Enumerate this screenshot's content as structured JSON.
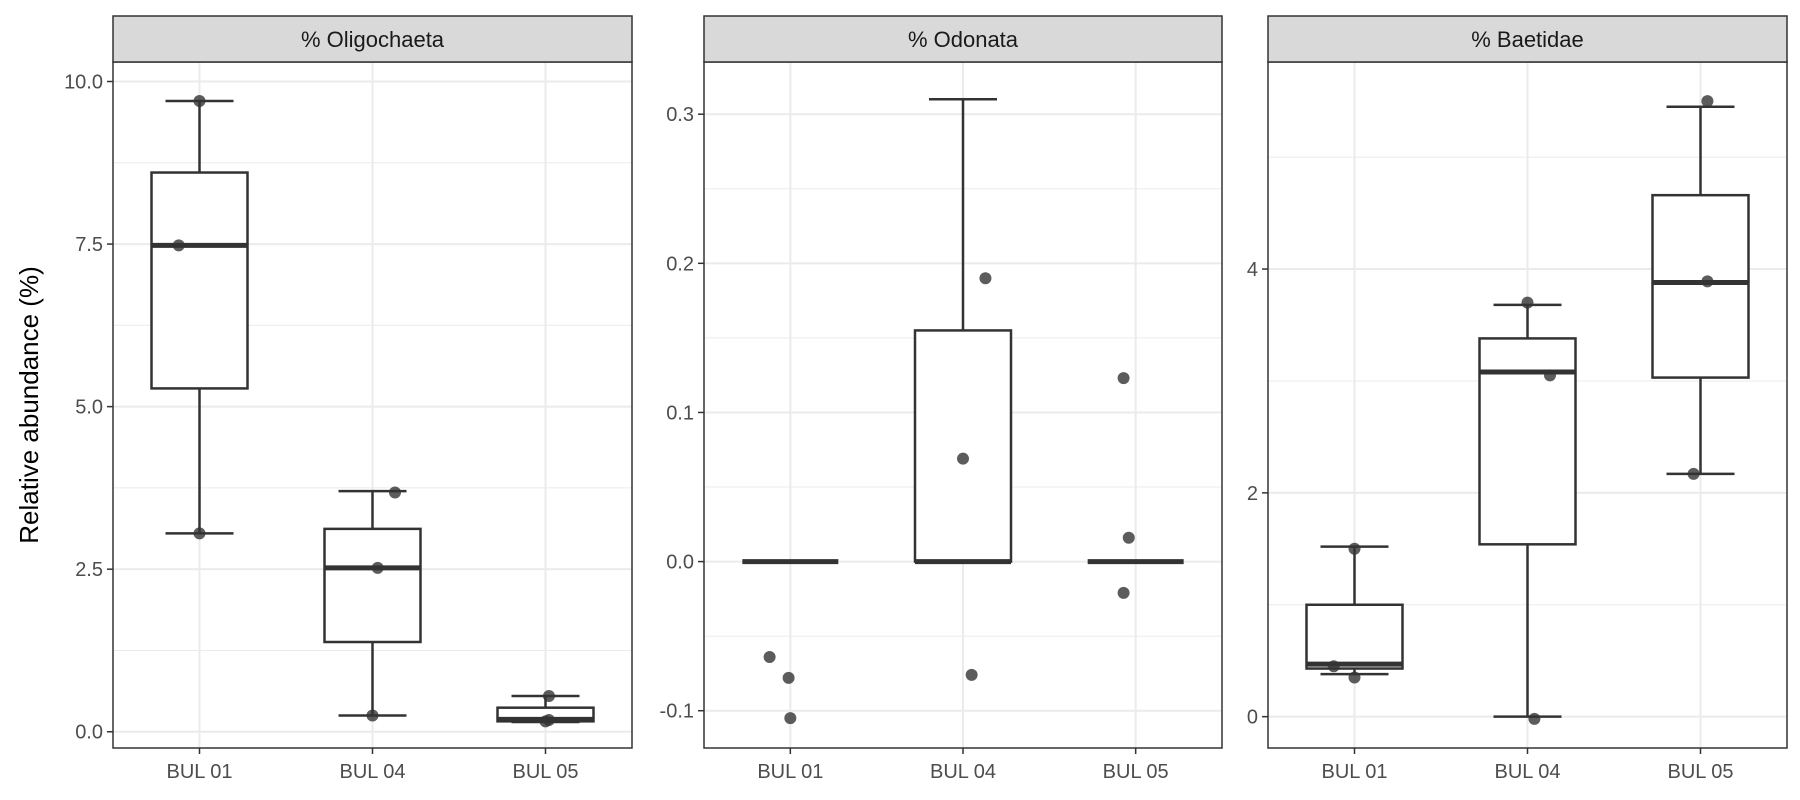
{
  "chart_data": {
    "type": "box",
    "ylabel": "Relative abundance (%)",
    "xlabel": "",
    "grid": true,
    "colors": {
      "strip_fill": "#d9d9d9",
      "box_line": "#333333",
      "point": "#333333",
      "grid": "#ebebeb"
    },
    "panels": [
      {
        "title": "% Oligochaeta",
        "ylim": [
          -0.25,
          10.3
        ],
        "yticks": [
          0.0,
          2.5,
          5.0,
          7.5,
          10.0
        ],
        "ytick_labels": [
          "0.0",
          "2.5",
          "5.0",
          "7.5",
          "10.0"
        ],
        "categories": [
          "BUL 01",
          "BUL 04",
          "BUL 05"
        ],
        "boxes": [
          {
            "lower_whisker": 3.05,
            "q1": 5.28,
            "median": 7.48,
            "q3": 8.6,
            "upper_whisker": 9.7
          },
          {
            "lower_whisker": 0.25,
            "q1": 1.38,
            "median": 2.52,
            "q3": 3.12,
            "upper_whisker": 3.7
          },
          {
            "lower_whisker": 0.15,
            "q1": 0.16,
            "median": 0.19,
            "q3": 0.37,
            "upper_whisker": 0.55
          }
        ],
        "points": [
          [
            9.7,
            7.48,
            3.05
          ],
          [
            3.68,
            2.52,
            0.25
          ],
          [
            0.55,
            0.18,
            0.16
          ]
        ],
        "point_jitter": [
          [
            0,
            -0.12,
            0
          ],
          [
            0.13,
            0.03,
            0
          ],
          [
            0.02,
            0.02,
            0
          ]
        ]
      },
      {
        "title": "% Odonata",
        "ylim": [
          -0.125,
          0.335
        ],
        "yticks": [
          -0.1,
          0.0,
          0.1,
          0.2,
          0.3
        ],
        "ytick_labels": [
          "-0.1",
          "0.0",
          "0.1",
          "0.2",
          "0.3"
        ],
        "categories": [
          "BUL 01",
          "BUL 04",
          "BUL 05"
        ],
        "boxes": [
          {
            "lower_whisker": 0.0,
            "q1": 0.0,
            "median": 0.0,
            "q3": 0.0,
            "upper_whisker": 0.0
          },
          {
            "lower_whisker": 0.0,
            "q1": 0.0,
            "median": 0.0,
            "q3": 0.155,
            "upper_whisker": 0.31
          },
          {
            "lower_whisker": 0.0,
            "q1": 0.0,
            "median": 0.0,
            "q3": 0.0,
            "upper_whisker": 0.0
          }
        ],
        "points": [
          [
            -0.064,
            -0.078,
            -0.105
          ],
          [
            0.19,
            0.069,
            -0.076
          ],
          [
            0.123,
            0.016,
            -0.021
          ]
        ],
        "point_jitter": [
          [
            -0.12,
            -0.01,
            0
          ],
          [
            0.13,
            0,
            0.05
          ],
          [
            -0.07,
            -0.04,
            -0.07
          ]
        ]
      },
      {
        "title": "% Baetidae",
        "ylim": [
          -0.28,
          5.85
        ],
        "yticks": [
          0,
          2,
          4
        ],
        "ytick_labels": [
          "0",
          "2",
          "4"
        ],
        "categories": [
          "BUL 01",
          "BUL 04",
          "BUL 05"
        ],
        "boxes": [
          {
            "lower_whisker": 0.38,
            "q1": 0.43,
            "median": 0.47,
            "q3": 1.0,
            "upper_whisker": 1.52
          },
          {
            "lower_whisker": 0.0,
            "q1": 1.54,
            "median": 3.08,
            "q3": 3.38,
            "upper_whisker": 3.68
          },
          {
            "lower_whisker": 2.17,
            "q1": 3.03,
            "median": 3.88,
            "q3": 4.66,
            "upper_whisker": 5.45
          }
        ],
        "points": [
          [
            1.5,
            0.45,
            0.35
          ],
          [
            3.7,
            3.05,
            -0.02
          ],
          [
            5.5,
            3.89,
            2.17
          ]
        ],
        "point_jitter": [
          [
            0,
            -0.12,
            0
          ],
          [
            0,
            0.13,
            0.04
          ],
          [
            0.04,
            0.04,
            -0.04
          ]
        ]
      }
    ]
  }
}
